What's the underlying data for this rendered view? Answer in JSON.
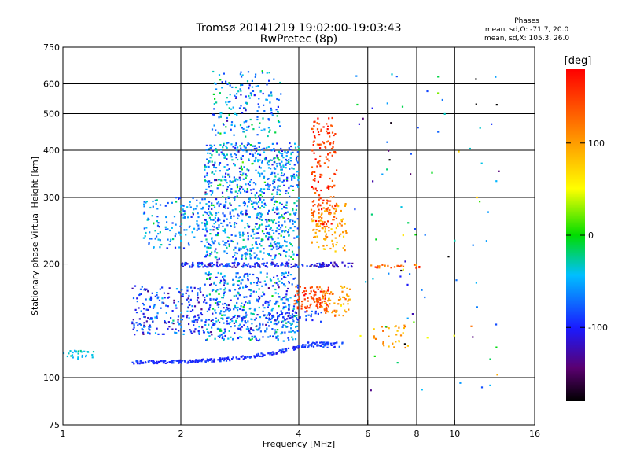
{
  "chart_data": {
    "type": "scatter",
    "title": "Tromsø 20141219 19:02:00-19:03:43",
    "subtitle": "RwPretec (8p)",
    "xlabel": "Frequency [MHz]",
    "ylabel": "Stationary phase Virtual Height [km]",
    "x_scale": "log",
    "y_scale": "log",
    "xlim": [
      1,
      16
    ],
    "ylim": [
      75,
      750
    ],
    "x_ticks": [
      1,
      2,
      4,
      6,
      8,
      10,
      16
    ],
    "x_tick_labels": [
      "1",
      "2",
      "4",
      "6",
      "8",
      "10",
      "16"
    ],
    "y_ticks": [
      75,
      100,
      200,
      300,
      400,
      500,
      600,
      750
    ],
    "y_tick_labels": [
      "75",
      "100",
      "200",
      "300",
      "400",
      "500",
      "600",
      "750"
    ],
    "grid": true,
    "colorbar": {
      "label": "[deg]",
      "range": [
        -180,
        180
      ],
      "ticks": [
        100,
        0,
        -100
      ],
      "tick_labels": [
        "100",
        "0",
        "-100"
      ]
    },
    "phase_stats": {
      "title": "Phases",
      "o_mode": "mean, sd,O: -71.7, 20.0",
      "x_mode": "mean, sd,X: 105.3, 26.0"
    },
    "clusters": [
      {
        "x_range": [
          1.0,
          1.2
        ],
        "y_range": [
          112,
          118
        ],
        "phase_mean": -40,
        "phase_sd": 10,
        "count": 30,
        "trace": "flat"
      },
      {
        "x_range": [
          1.5,
          4.2
        ],
        "y_range": [
          110,
          112
        ],
        "phase_mean": -95,
        "phase_sd": 8,
        "count": 220,
        "trace": "rising",
        "y_end": 122
      },
      {
        "x_range": [
          4.2,
          5.2
        ],
        "y_range": [
          120,
          124
        ],
        "phase_mean": -90,
        "phase_sd": 10,
        "count": 50,
        "trace": "flat"
      },
      {
        "x_range": [
          1.5,
          2.3
        ],
        "y_range": [
          130,
          175
        ],
        "phase_mean": -90,
        "phase_sd": 25,
        "count": 220,
        "trace": "cloud"
      },
      {
        "x_range": [
          2.3,
          4.0
        ],
        "y_range": [
          125,
          190
        ],
        "phase_mean": -70,
        "phase_sd": 30,
        "count": 520,
        "trace": "cloud"
      },
      {
        "x_range": [
          1.6,
          2.4
        ],
        "y_range": [
          220,
          300
        ],
        "phase_mean": -60,
        "phase_sd": 25,
        "count": 150,
        "trace": "cloud"
      },
      {
        "x_range": [
          2.3,
          4.0
        ],
        "y_range": [
          205,
          420
        ],
        "phase_mean": -60,
        "phase_sd": 30,
        "count": 900,
        "trace": "cloud"
      },
      {
        "x_range": [
          2.4,
          3.6
        ],
        "y_range": [
          430,
          650
        ],
        "phase_mean": -55,
        "phase_sd": 30,
        "count": 170,
        "trace": "cloud"
      },
      {
        "x_range": [
          2.0,
          4.6
        ],
        "y_range": [
          196,
          202
        ],
        "phase_mean": -100,
        "phase_sd": 20,
        "count": 160,
        "trace": "flat"
      },
      {
        "x_range": [
          4.5,
          5.5
        ],
        "y_range": [
          196,
          202
        ],
        "phase_mean": -115,
        "phase_sd": 15,
        "count": 40,
        "trace": "flat"
      },
      {
        "x_range": [
          6.1,
          8.2
        ],
        "y_range": [
          195,
          200
        ],
        "phase_mean": 130,
        "phase_sd": 20,
        "count": 25,
        "trace": "flat"
      },
      {
        "x_range": [
          3.9,
          4.8
        ],
        "y_range": [
          150,
          175
        ],
        "phase_mean": 150,
        "phase_sd": 15,
        "count": 90,
        "trace": "cloud"
      },
      {
        "x_range": [
          4.3,
          5.0
        ],
        "y_range": [
          250,
          490
        ],
        "phase_mean": 150,
        "phase_sd": 18,
        "count": 170,
        "trace": "cloud"
      },
      {
        "x_range": [
          4.3,
          5.3
        ],
        "y_range": [
          215,
          290
        ],
        "phase_mean": 100,
        "phase_sd": 15,
        "count": 90,
        "trace": "cloud"
      },
      {
        "x_range": [
          4.5,
          5.4
        ],
        "y_range": [
          145,
          175
        ],
        "phase_mean": 100,
        "phase_sd": 15,
        "count": 60,
        "trace": "cloud"
      },
      {
        "x_range": [
          6.2,
          7.5
        ],
        "y_range": [
          120,
          140
        ],
        "phase_mean": 95,
        "phase_sd": 20,
        "count": 30,
        "trace": "cloud"
      },
      {
        "x_range": [
          3.3,
          4.6
        ],
        "y_range": [
          140,
          150
        ],
        "phase_mean": -90,
        "phase_sd": 15,
        "count": 50,
        "trace": "cloud"
      },
      {
        "x_range": [
          5.5,
          13.0
        ],
        "y_range": [
          90,
          650
        ],
        "phase_mean": -60,
        "phase_sd": 80,
        "count": 90,
        "trace": "cloud"
      }
    ]
  }
}
